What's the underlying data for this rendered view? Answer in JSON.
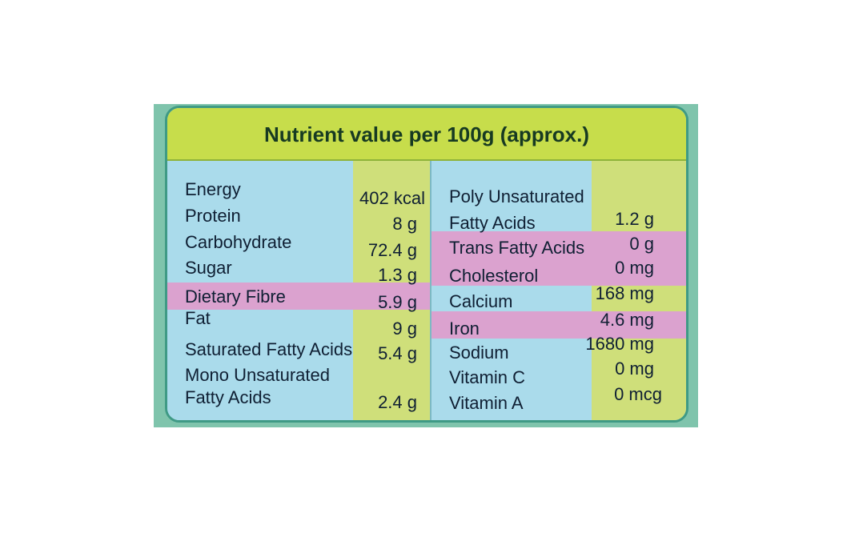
{
  "title": "Nutrient value per 100g (approx.)",
  "left_rows": [
    {
      "label": "Energy",
      "value": "402 kcal"
    },
    {
      "label": "Protein",
      "value": "8 g"
    },
    {
      "label": "Carbohydrate",
      "value": "72.4 g"
    },
    {
      "label": "Sugar",
      "value": "1.3 g"
    },
    {
      "label": "Dietary Fibre",
      "value": "5.9 g",
      "highlight": true
    },
    {
      "label": "Fat",
      "value": "9 g"
    },
    {
      "label": "Saturated Fatty Acids",
      "value": "5.4 g"
    },
    {
      "label": "Mono Unsaturated",
      "value": ""
    },
    {
      "label": "Fatty Acids",
      "value": "2.4 g"
    }
  ],
  "right_rows": [
    {
      "label": "Poly Unsaturated",
      "value": ""
    },
    {
      "label": "Fatty Acids",
      "value": "1.2 g"
    },
    {
      "label": "Trans Fatty Acids",
      "value": "0 g",
      "highlight": true
    },
    {
      "label": "Cholesterol",
      "value": "0 mg",
      "highlight": true
    },
    {
      "label": "Calcium",
      "value": "168 mg"
    },
    {
      "label": "Iron",
      "value": "4.6 mg",
      "highlight": true
    },
    {
      "label": "Sodium",
      "value": "1680 mg"
    },
    {
      "label": "Vitamin C",
      "value": "0 mg"
    },
    {
      "label": "Vitamin A",
      "value": "0 mcg"
    }
  ],
  "colors": {
    "label_column": "#aadbeb",
    "value_column": "#cfdf7a",
    "title_bar": "#c7dd4b",
    "highlight": "#dba2cf",
    "border": "#3f9a85"
  }
}
